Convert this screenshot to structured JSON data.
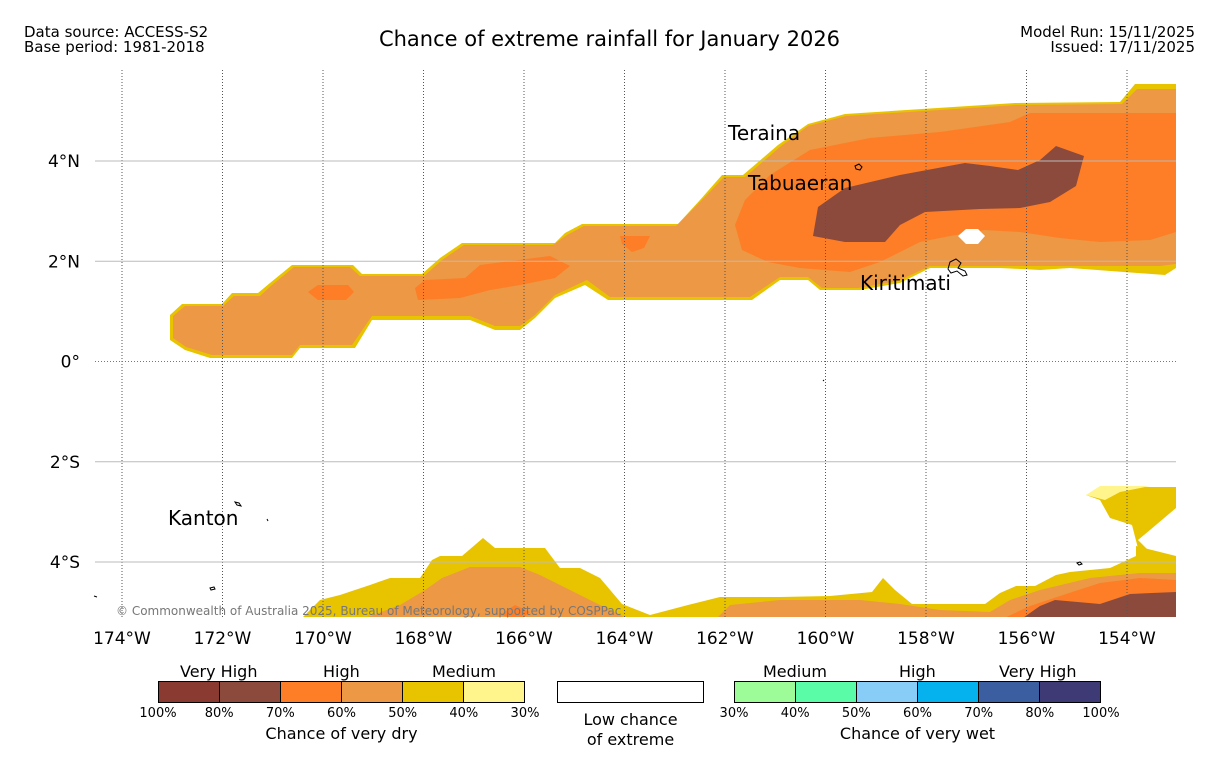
{
  "header": {
    "data_source": "Data source: ACCESS-S2",
    "base_period": "Base period: 1981-2018",
    "title": "Chance of extreme rainfall for January 2026",
    "model_run": "Model Run: 15/11/2025",
    "issued": "Issued: 17/11/2025"
  },
  "map": {
    "lon_labels": [
      "174°W",
      "172°W",
      "170°W",
      "168°W",
      "166°W",
      "164°W",
      "162°W",
      "160°W",
      "158°W",
      "156°W",
      "154°W"
    ],
    "lat_labels": [
      "4°N",
      "2°N",
      "0°",
      "2°S",
      "4°S"
    ],
    "places": {
      "teraina": "Teraina",
      "tabuaeran": "Tabuaeran",
      "kiritimati": "Kiritimati",
      "kanton": "Kanton"
    },
    "copyright": "© Commonwealth of Australia 2025, Bureau of Meteorology, supported by COSPPac"
  },
  "legend": {
    "dry": {
      "groups": [
        "Very High",
        "High",
        "Medium"
      ],
      "colors": [
        "#8b3a32",
        "#8b4a3c",
        "#fd7e26",
        "#ec9845",
        "#e8c400",
        "#fff58c"
      ],
      "ticks": [
        "100%",
        "80%",
        "70%",
        "60%",
        "50%",
        "40%",
        "30%"
      ],
      "caption": "Chance of very dry"
    },
    "neutral": {
      "line1": "Low chance",
      "line2": "of extreme"
    },
    "wet": {
      "groups": [
        "Medium",
        "High",
        "Very High"
      ],
      "colors": [
        "#9efc98",
        "#5afca8",
        "#88ccf8",
        "#05b2ee",
        "#3a5ea0",
        "#3e3a76"
      ],
      "ticks": [
        "30%",
        "40%",
        "50%",
        "60%",
        "70%",
        "80%",
        "100%"
      ],
      "caption": "Chance of very wet"
    }
  }
}
